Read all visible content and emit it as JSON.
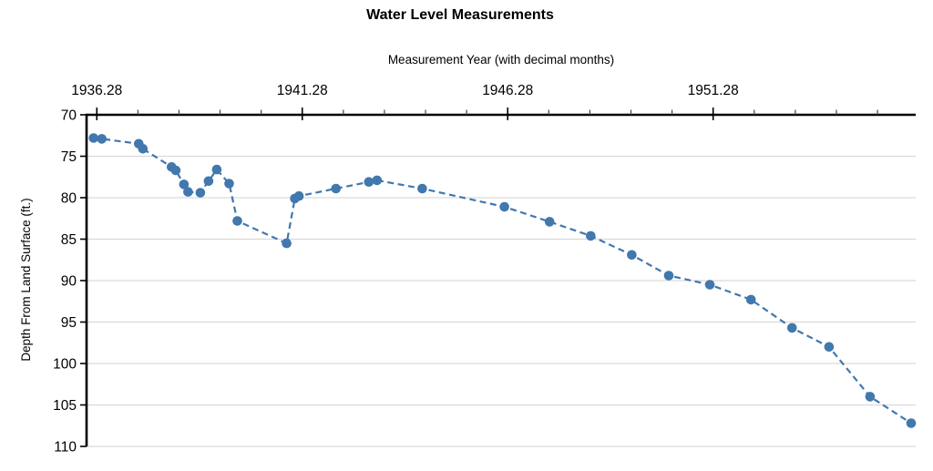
{
  "chart_data": {
    "type": "line",
    "title": "Water Level Measurements",
    "xlabel": "Measurement Year (with decimal months)",
    "ylabel": "Depth From Land Surface (ft.)",
    "x": [
      1936.2,
      1936.4,
      1937.3,
      1937.4,
      1938.1,
      1938.2,
      1938.4,
      1938.5,
      1938.8,
      1939.0,
      1939.2,
      1939.5,
      1939.7,
      1940.9,
      1941.1,
      1941.2,
      1942.1,
      1942.9,
      1943.1,
      1944.2,
      1946.2,
      1947.3,
      1948.3,
      1949.3,
      1950.2,
      1951.2,
      1952.2,
      1953.2,
      1954.1,
      1955.1,
      1956.1
    ],
    "y": [
      72.8,
      72.9,
      73.5,
      74.1,
      76.3,
      76.7,
      78.4,
      79.3,
      79.4,
      78.0,
      76.6,
      78.3,
      82.8,
      85.5,
      80.1,
      79.8,
      78.9,
      78.1,
      77.9,
      78.9,
      81.1,
      82.9,
      84.6,
      86.9,
      89.4,
      90.5,
      92.3,
      95.7,
      98.0,
      104.0,
      107.2
    ],
    "xlim": [
      1936.03,
      1956.21
    ],
    "ylim": [
      70,
      110
    ],
    "y_inverted": true,
    "x_axis_position": "top",
    "x_major_ticks": [
      1936.28,
      1941.28,
      1946.28,
      1951.28
    ],
    "x_major_tick_labels": [
      "1936.28",
      "1941.28",
      "1946.28",
      "1951.28"
    ],
    "x_minor_ticks_start": 1937.28,
    "x_minor_ticks_end": 1955.28,
    "x_minor_tick_interval": 1,
    "y_ticks": [
      70,
      75,
      80,
      85,
      90,
      95,
      100,
      105,
      110
    ],
    "y_tick_labels": [
      "70",
      "75",
      "80",
      "85",
      "90",
      "95",
      "100",
      "105",
      "110"
    ],
    "grid": "horizontal",
    "line_style": "dashed",
    "marker": "circle",
    "legend": null,
    "colors": {
      "series": "#4178ad",
      "marker": "#4178ad",
      "grid": "#d9d9d9",
      "axis": "#000000",
      "text": "#000000",
      "background": "#ffffff"
    }
  }
}
